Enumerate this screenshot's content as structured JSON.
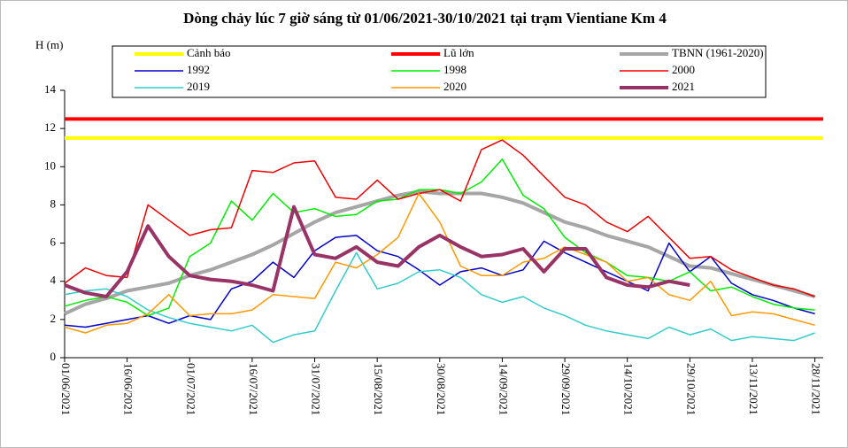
{
  "chart_data": {
    "type": "line",
    "title": "Dòng chảy lúc 7 giờ sáng từ 01/06/2021-30/10/2021 tại trạm Vientiane Km 4",
    "y_label": "H (m)",
    "x": [
      "01/06/2021",
      "06/06/2021",
      "11/06/2021",
      "16/06/2021",
      "21/06/2021",
      "26/06/2021",
      "01/07/2021",
      "06/07/2021",
      "11/07/2021",
      "16/07/2021",
      "21/07/2021",
      "26/07/2021",
      "31/07/2021",
      "05/08/2021",
      "10/08/2021",
      "15/08/2021",
      "20/08/2021",
      "25/08/2021",
      "30/08/2021",
      "04/09/2021",
      "09/09/2021",
      "14/09/2021",
      "19/09/2021",
      "24/09/2021",
      "29/09/2021",
      "04/10/2021",
      "09/10/2021",
      "14/10/2021",
      "19/10/2021",
      "24/10/2021",
      "29/10/2021",
      "03/11/2021",
      "08/11/2021",
      "13/11/2021",
      "18/11/2021",
      "23/11/2021",
      "28/11/2021"
    ],
    "xlim": [
      "01/06/2021",
      "30/11/2021"
    ],
    "xticks": [
      "01/06/2021",
      "16/06/2021",
      "01/07/2021",
      "16/07/2021",
      "31/07/2021",
      "15/08/2021",
      "30/08/2021",
      "14/09/2021",
      "29/09/2021",
      "14/10/2021",
      "29/10/2021",
      "13/11/2021",
      "28/11/2021"
    ],
    "ylim": [
      0,
      14
    ],
    "yticks": [
      0,
      2,
      4,
      6,
      8,
      10,
      12,
      14
    ],
    "grid": false,
    "series": [
      {
        "name": "Cảnh báo",
        "color": "#ffff00",
        "width": 4,
        "level": 11.5
      },
      {
        "name": "Lũ lớn",
        "color": "#ff0000",
        "width": 4,
        "level": 12.5
      },
      {
        "name": "TBNN (1961-2020)",
        "color": "#a6a6a6",
        "width": 4,
        "values": [
          2.3,
          2.8,
          3.1,
          3.5,
          3.7,
          3.9,
          4.3,
          4.6,
          5.0,
          5.4,
          5.9,
          6.5,
          7.1,
          7.6,
          7.9,
          8.2,
          8.5,
          8.7,
          8.6,
          8.6,
          8.6,
          8.4,
          8.1,
          7.6,
          7.1,
          6.8,
          6.4,
          6.1,
          5.8,
          5.3,
          4.8,
          4.7,
          4.4,
          4.1,
          3.8,
          3.5,
          3.2
        ]
      },
      {
        "name": "1992",
        "color": "#0000cc",
        "width": 1.5,
        "values": [
          1.7,
          1.6,
          1.8,
          2.0,
          2.2,
          1.8,
          2.2,
          2.0,
          3.6,
          4.0,
          5.0,
          4.2,
          5.6,
          6.3,
          6.4,
          5.6,
          5.3,
          4.6,
          3.8,
          4.5,
          4.7,
          4.3,
          4.6,
          6.1,
          5.5,
          5.0,
          4.5,
          4.0,
          3.5,
          6.0,
          4.5,
          5.3,
          3.9,
          3.3,
          3.0,
          2.6,
          2.3
        ]
      },
      {
        "name": "1998",
        "color": "#00ee00",
        "width": 1.5,
        "values": [
          2.7,
          3.0,
          3.2,
          2.9,
          2.2,
          2.6,
          5.3,
          6.0,
          8.2,
          7.2,
          8.6,
          7.6,
          7.8,
          7.4,
          7.5,
          8.2,
          8.3,
          8.8,
          8.8,
          8.6,
          9.2,
          10.4,
          8.5,
          7.8,
          6.3,
          5.5,
          5.0,
          4.3,
          4.2,
          4.0,
          4.5,
          3.5,
          3.7,
          3.2,
          2.8,
          2.6,
          2.5
        ]
      },
      {
        "name": "2000",
        "color": "#ee0000",
        "width": 1.5,
        "values": [
          3.9,
          4.7,
          4.3,
          4.2,
          8.0,
          7.2,
          6.4,
          6.7,
          6.8,
          9.8,
          9.7,
          10.2,
          10.3,
          8.4,
          8.3,
          9.3,
          8.3,
          8.6,
          8.8,
          8.2,
          10.9,
          11.4,
          10.6,
          9.5,
          8.4,
          8.0,
          7.1,
          6.6,
          7.4,
          6.3,
          5.2,
          5.3,
          4.6,
          4.2,
          3.8,
          3.6,
          3.2
        ]
      },
      {
        "name": "2019",
        "color": "#33cccc",
        "width": 1.5,
        "values": [
          3.3,
          3.5,
          3.6,
          3.2,
          2.5,
          2.1,
          1.8,
          1.6,
          1.4,
          1.7,
          0.8,
          1.2,
          1.4,
          3.5,
          5.5,
          3.6,
          3.9,
          4.5,
          4.6,
          4.2,
          3.3,
          2.9,
          3.2,
          2.6,
          2.2,
          1.7,
          1.4,
          1.2,
          1.0,
          1.6,
          1.2,
          1.5,
          0.9,
          1.1,
          1.0,
          0.9,
          1.3
        ]
      },
      {
        "name": "2020",
        "color": "#ff9900",
        "width": 1.5,
        "values": [
          1.6,
          1.3,
          1.7,
          1.8,
          2.3,
          3.3,
          2.2,
          2.3,
          2.3,
          2.5,
          3.3,
          3.2,
          3.1,
          5.0,
          4.7,
          5.4,
          6.3,
          8.6,
          7.1,
          4.8,
          4.3,
          4.3,
          5.0,
          5.2,
          5.8,
          5.4,
          5.0,
          4.0,
          4.2,
          3.3,
          3.0,
          4.0,
          2.2,
          2.4,
          2.3,
          2.0,
          1.7
        ]
      },
      {
        "name": "2021",
        "color": "#993366",
        "width": 4,
        "values": [
          3.8,
          3.4,
          3.2,
          4.5,
          6.9,
          5.3,
          4.3,
          4.1,
          4.0,
          3.8,
          3.5,
          7.9,
          5.4,
          5.2,
          5.8,
          5.0,
          4.8,
          5.8,
          6.4,
          5.8,
          5.3,
          5.4,
          5.7,
          4.5,
          5.7,
          5.7,
          4.2,
          3.8,
          3.7,
          4.0,
          3.8,
          null,
          null,
          null,
          null,
          null,
          null
        ]
      }
    ]
  }
}
